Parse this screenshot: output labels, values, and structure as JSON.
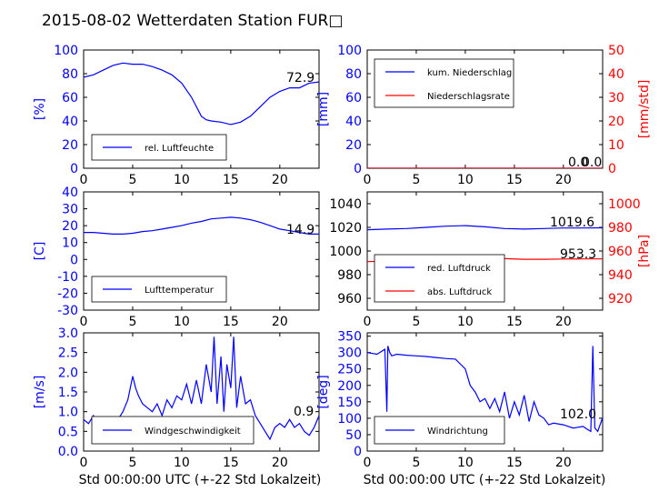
{
  "figure": {
    "title": "2015-08-02 Wetterdaten Station FUR□",
    "xlabel": "Std 00:00:00 UTC (+-22 Std Lokalzeit)"
  },
  "chart_data": [
    {
      "id": "humidity",
      "type": "line",
      "ylabel": "[%]",
      "xlim": [
        0,
        24
      ],
      "ylim": [
        0,
        100
      ],
      "xticks": [
        0,
        5,
        10,
        15,
        20
      ],
      "yticks": [
        0,
        20,
        40,
        60,
        80,
        100
      ],
      "legend": [
        "rel. Luftfeuchte"
      ],
      "legend_position": "lower-left",
      "last_value_label": "72.9",
      "series": [
        {
          "name": "rel. Luftfeuchte",
          "color": "#0000ff",
          "x": [
            0,
            1,
            2,
            3,
            4,
            5,
            6,
            7,
            8,
            9,
            10,
            11,
            11.5,
            12,
            12.5,
            13,
            14,
            15,
            16,
            17,
            18,
            19,
            20,
            21,
            22,
            23,
            24
          ],
          "y": [
            77,
            79,
            83,
            87,
            89,
            88,
            88,
            86,
            83,
            79,
            72,
            60,
            52,
            44,
            41,
            40,
            39,
            37,
            39,
            44,
            52,
            60,
            65,
            68,
            68,
            72,
            73
          ]
        }
      ]
    },
    {
      "id": "precip",
      "type": "line",
      "ylabel": "[mm]",
      "ylabel_right": "[mm/std]",
      "xlim": [
        0,
        24
      ],
      "ylim": [
        0,
        100
      ],
      "ylim_right": [
        0,
        50
      ],
      "xticks": [
        0,
        5,
        10,
        15,
        20
      ],
      "yticks": [
        0,
        20,
        40,
        60,
        80,
        100
      ],
      "yticks_right": [
        0,
        10,
        20,
        30,
        40,
        50
      ],
      "legend": [
        "kum. Niederschlag",
        "Niederschlagsrate"
      ],
      "legend_position": "upper-left",
      "last_value_labels": [
        "0.0",
        "0.0"
      ],
      "series": [
        {
          "name": "kum. Niederschlag",
          "color": "#0000ff",
          "x": [
            0,
            24
          ],
          "y": [
            0,
            0
          ]
        },
        {
          "name": "Niederschlagsrate",
          "color": "#ff0000",
          "axis": "right",
          "x": [
            0,
            24
          ],
          "y": [
            0,
            0
          ]
        }
      ]
    },
    {
      "id": "temperature",
      "type": "line",
      "ylabel": "[C]",
      "xlim": [
        0,
        24
      ],
      "ylim": [
        -30,
        40
      ],
      "xticks": [
        0,
        5,
        10,
        15,
        20
      ],
      "yticks": [
        -30,
        -20,
        -10,
        0,
        10,
        20,
        30,
        40
      ],
      "legend": [
        "Lufttemperatur"
      ],
      "legend_position": "lower-left",
      "last_value_label": "14.9",
      "series": [
        {
          "name": "Lufttemperatur",
          "color": "#0000ff",
          "x": [
            0,
            1,
            2,
            3,
            4,
            5,
            6,
            7,
            8,
            9,
            10,
            11,
            12,
            13,
            14,
            15,
            16,
            17,
            18,
            19,
            20,
            21,
            22,
            23,
            24
          ],
          "y": [
            16,
            16,
            15.5,
            15,
            15,
            15.5,
            16.5,
            17,
            18,
            19,
            20,
            21.5,
            22.5,
            24,
            24.5,
            25,
            24.5,
            23.5,
            22,
            20,
            18,
            17,
            16,
            15,
            15
          ]
        }
      ]
    },
    {
      "id": "pressure",
      "type": "line",
      "ylabel_right": "[hPa]",
      "xlim": [
        0,
        24
      ],
      "ylim": [
        950,
        1050
      ],
      "ylim_right": [
        910,
        1010
      ],
      "xticks": [
        0,
        5,
        10,
        15,
        20
      ],
      "yticks": [
        960,
        980,
        1000,
        1020,
        1040
      ],
      "yticks_right": [
        920,
        940,
        960,
        980,
        1000
      ],
      "legend": [
        "red. Luftdruck",
        "abs. Luftdruck"
      ],
      "legend_position": "lower-left",
      "last_value_labels": [
        "1019.6",
        "953.3"
      ],
      "series": [
        {
          "name": "red. Luftdruck",
          "color": "#0000ff",
          "x": [
            0,
            2,
            4,
            6,
            8,
            10,
            12,
            14,
            16,
            18,
            20,
            22,
            24
          ],
          "y": [
            1018,
            1018.5,
            1019,
            1020,
            1021,
            1021.5,
            1020.5,
            1019,
            1018.5,
            1019,
            1019.5,
            1019.5,
            1019.6
          ]
        },
        {
          "name": "abs. Luftdruck",
          "color": "#ff0000",
          "axis": "right",
          "x": [
            0,
            2,
            4,
            6,
            8,
            10,
            12,
            14,
            16,
            18,
            20,
            22,
            24
          ],
          "y": [
            951,
            951.5,
            952,
            953,
            954,
            954.5,
            954,
            953.5,
            953,
            953,
            953.2,
            953.3,
            953.3
          ]
        }
      ]
    },
    {
      "id": "windspeed",
      "type": "line",
      "ylabel": "[m/s]",
      "xlim": [
        0,
        24
      ],
      "ylim": [
        0,
        3
      ],
      "xticks": [
        0,
        5,
        10,
        15,
        20
      ],
      "yticks": [
        0,
        0.5,
        1,
        1.5,
        2,
        2.5,
        3
      ],
      "yticklabels": [
        "0.0",
        "0.5",
        "1.0",
        "1.5",
        "2.0",
        "2.5",
        "3.0"
      ],
      "legend": [
        "Windgeschwindigkeit"
      ],
      "legend_position": "lower-left",
      "last_value_label": "0.9",
      "series": [
        {
          "name": "Windgeschwindigkeit",
          "color": "#0000ff",
          "x": [
            0,
            0.5,
            1,
            1.5,
            2,
            2.5,
            3,
            3.5,
            4,
            4.5,
            5,
            5.3,
            5.6,
            6,
            6.5,
            7,
            7.5,
            8,
            8.5,
            9,
            9.5,
            10,
            10.5,
            11,
            11.5,
            12,
            12.5,
            13,
            13.3,
            13.6,
            14,
            14.3,
            14.6,
            15,
            15.3,
            15.6,
            16,
            16.5,
            17,
            17.5,
            18,
            18.5,
            19,
            19.5,
            20,
            20.5,
            21,
            21.5,
            22,
            22.5,
            23,
            23.5,
            24
          ],
          "y": [
            0.8,
            0.7,
            0.9,
            0.5,
            0.2,
            0.4,
            0.6,
            0.8,
            1.0,
            1.3,
            1.9,
            1.6,
            1.4,
            1.2,
            1.1,
            1.0,
            1.2,
            0.9,
            1.3,
            1.1,
            1.4,
            1.3,
            1.7,
            1.2,
            1.8,
            1.2,
            2.2,
            1.5,
            2.9,
            1.2,
            2.4,
            1.0,
            2.2,
            1.6,
            2.9,
            1.1,
            1.9,
            1.2,
            1.3,
            0.9,
            0.7,
            0.5,
            0.3,
            0.6,
            0.7,
            0.6,
            0.8,
            0.6,
            0.7,
            0.5,
            0.4,
            0.6,
            0.9
          ]
        }
      ]
    },
    {
      "id": "winddir",
      "type": "line",
      "ylabel": "[deg]",
      "xlim": [
        0,
        24
      ],
      "ylim": [
        0,
        360
      ],
      "xticks": [
        0,
        5,
        10,
        15,
        20
      ],
      "yticks": [
        0,
        50,
        100,
        150,
        200,
        250,
        300,
        350
      ],
      "legend": [
        "Windrichtung"
      ],
      "legend_position": "lower-left",
      "last_value_label": "102.0",
      "series": [
        {
          "name": "Windrichtung",
          "color": "#0000ff",
          "x": [
            0,
            1,
            1.8,
            2,
            2.1,
            2.3,
            2.5,
            3,
            4,
            5,
            6,
            7,
            8,
            9,
            10,
            10.5,
            11,
            11.5,
            12,
            12.5,
            13,
            13.5,
            14,
            14.5,
            15,
            15.5,
            16,
            16.5,
            17,
            17.5,
            18,
            18.5,
            19,
            20,
            21,
            22,
            22.5,
            22.8,
            23,
            23.2,
            23.5,
            24
          ],
          "y": [
            300,
            295,
            310,
            120,
            320,
            300,
            290,
            295,
            292,
            290,
            288,
            285,
            282,
            280,
            250,
            200,
            180,
            150,
            160,
            130,
            160,
            120,
            180,
            100,
            150,
            110,
            170,
            90,
            150,
            110,
            100,
            80,
            85,
            80,
            70,
            75,
            65,
            60,
            320,
            70,
            60,
            102
          ]
        }
      ]
    }
  ]
}
